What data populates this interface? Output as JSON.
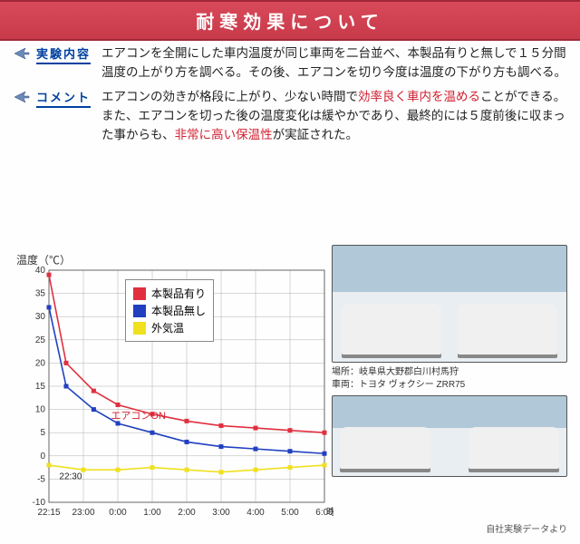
{
  "header": {
    "title": "耐寒効果について"
  },
  "sections": {
    "experiment": {
      "label": "実験内容",
      "text": "エアコンを全開にした車内温度が同じ車両を二台並べ、本製品有りと無しで１５分間温度の上がり方を調べる。その後、エアコンを切り今度は温度の下がり方も調べる。"
    },
    "comment": {
      "label": "コメント",
      "text_parts": [
        "エアコンの効きが格段に上がり、少ない時間で",
        "効率良く車内を温める",
        "ことができる。",
        "また、エアコンを切った後の温度変化は緩やかであり、最終的には５度前後に収まった事からも、",
        "非常に高い保温性",
        "が実証された。"
      ]
    }
  },
  "chart": {
    "y_axis_label": "温度（℃）",
    "x_axis_label": "時刻",
    "ylim": [
      -10,
      40
    ],
    "ytick_step": 5,
    "xticks": [
      "22:15",
      "23:00",
      "0:00",
      "1:00",
      "2:00",
      "3:00",
      "4:00",
      "5:00",
      "6:00"
    ],
    "grid_color": "#b0b0b0",
    "background_color": "#ffffff",
    "legend": [
      {
        "label": "本製品有り",
        "color": "#e03040"
      },
      {
        "label": "本製品無し",
        "color": "#2040c0"
      },
      {
        "label": "外気温",
        "color": "#f0e020"
      }
    ],
    "red_after_key": "時刻",
    "series": {
      "with_product": {
        "color": "#e03040",
        "points": [
          [
            0,
            39
          ],
          [
            0.5,
            20
          ],
          [
            1.3,
            14
          ],
          [
            2,
            11
          ],
          [
            3,
            9
          ],
          [
            4,
            7.5
          ],
          [
            5,
            6.5
          ],
          [
            6,
            6
          ],
          [
            7,
            5.5
          ],
          [
            8,
            5
          ]
        ]
      },
      "without_product": {
        "color": "#2040c0",
        "points": [
          [
            0,
            32
          ],
          [
            0.5,
            15
          ],
          [
            1.3,
            10
          ],
          [
            2,
            7
          ],
          [
            3,
            5
          ],
          [
            4,
            3
          ],
          [
            5,
            2
          ],
          [
            6,
            1.5
          ],
          [
            7,
            1
          ],
          [
            8,
            0.5
          ]
        ]
      },
      "outside": {
        "color": "#f0e020",
        "points": [
          [
            0,
            -2
          ],
          [
            1,
            -3
          ],
          [
            2,
            -3
          ],
          [
            3,
            -2.5
          ],
          [
            4,
            -3
          ],
          [
            5,
            -3.5
          ],
          [
            6,
            -3
          ],
          [
            7,
            -2.5
          ],
          [
            8,
            -2
          ]
        ]
      }
    },
    "annotations": {
      "aircon_on": "エアコンON",
      "time_label": "22:30"
    }
  },
  "photos": {
    "location_label": "場所：岐阜県大野郡白川村馬狩",
    "vehicle_label": "車両：トヨタ ヴォクシー ZRR75"
  },
  "footer": {
    "note": "自社実験データより"
  }
}
